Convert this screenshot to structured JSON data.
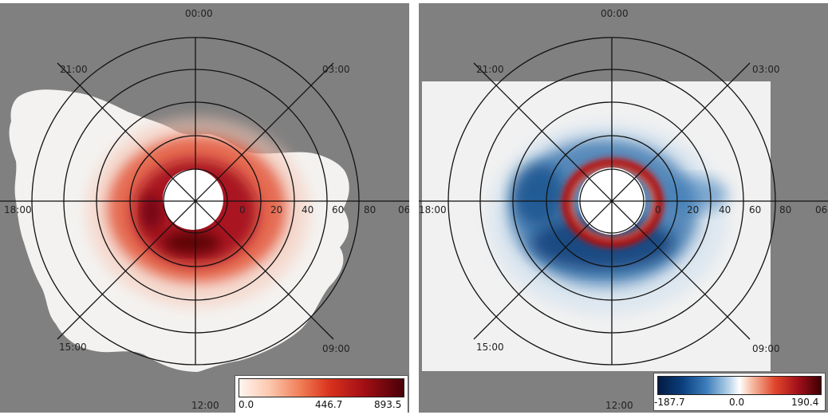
{
  "panels": [
    {
      "clock": {
        "top": "00:00",
        "topright": "03:00",
        "right": "06",
        "bottomright": "09:00",
        "bottom": "12:00",
        "bottomleft": "15:00",
        "left": "18:00",
        "topleft": "21:00"
      },
      "lat_labels": [
        "0",
        "20",
        "40",
        "60",
        "80"
      ],
      "colorbar": {
        "min": "0.0",
        "mid": "446.7",
        "max": "893.5",
        "colormap": "white-to-dark-red"
      }
    },
    {
      "clock": {
        "top": "00:00",
        "topright": "03:00",
        "right": "06",
        "bottomright": "09:00",
        "bottom": "12:00",
        "bottomleft": "15:00",
        "left": "18:00",
        "topleft": "21:00"
      },
      "lat_labels": [
        "0",
        "20",
        "40",
        "60",
        "80"
      ],
      "colorbar": {
        "min": "-187.7",
        "mid": "0.0",
        "max": "190.4",
        "colormap": "blue-white-red"
      }
    }
  ],
  "colors": {
    "background": "#808080",
    "grid": "#111111",
    "map_fill": "#f2f1f0"
  }
}
